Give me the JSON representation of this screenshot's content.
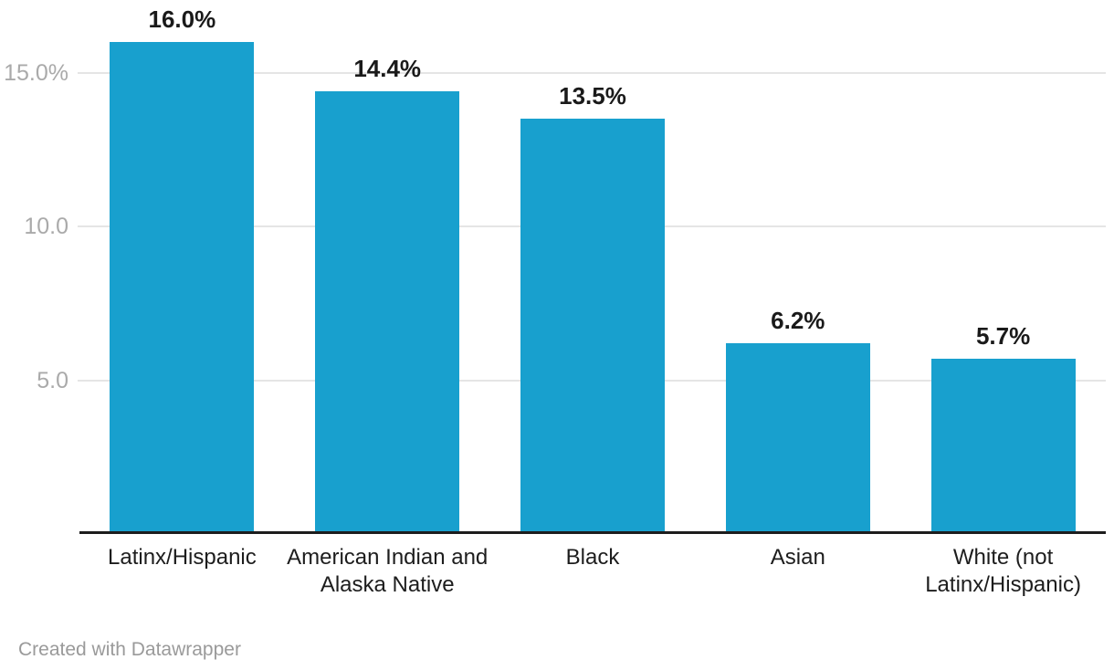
{
  "chart_data": {
    "type": "bar",
    "categories": [
      "Latinx/Hispanic",
      "American Indian and Alaska Native",
      "Black",
      "Asian",
      "White (not Latinx/Hispanic)"
    ],
    "values": [
      16.0,
      14.4,
      13.5,
      6.2,
      5.7
    ],
    "value_labels": [
      "16.0%",
      "14.4%",
      "13.5%",
      "6.2%",
      "5.7%"
    ],
    "y_ticks": [
      {
        "value": 15,
        "label": "15.0%"
      },
      {
        "value": 10,
        "label": "10.0"
      },
      {
        "value": 5,
        "label": "5.0"
      }
    ],
    "ylim": [
      0,
      17.3
    ],
    "title": "",
    "xlabel": "",
    "ylabel": "",
    "grid": true,
    "legend_position": "none",
    "bar_color": "#18a0ce"
  },
  "colors": {
    "bar": "#18a0ce",
    "gridline": "#e5e5e5",
    "axis_line": "#1d1d1d",
    "tick_label": "#aaaaaa",
    "value_label": "#1a1a1a",
    "category_label": "#1d1d1d",
    "footer_text": "#9a9a9a",
    "background": "#ffffff"
  },
  "footer": {
    "attribution": "Created with Datawrapper"
  }
}
